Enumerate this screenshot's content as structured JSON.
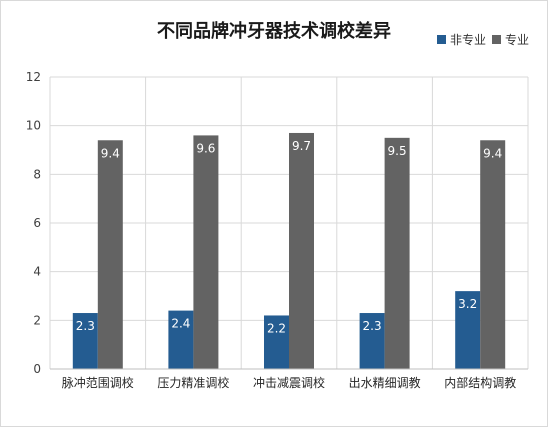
{
  "chart_data": {
    "type": "bar",
    "title": "不同品牌冲牙器技术调校差异",
    "categories": [
      "脉冲范围调校",
      "压力精准调校",
      "冲击减震调校",
      "出水精细调教",
      "内部结构调教"
    ],
    "series": [
      {
        "name": "非专业",
        "values": [
          2.3,
          2.4,
          2.2,
          2.3,
          3.2
        ],
        "color": "#245c91"
      },
      {
        "name": "专业",
        "values": [
          9.4,
          9.6,
          9.7,
          9.5,
          9.4
        ],
        "color": "#636363"
      }
    ],
    "ylim": [
      0,
      12
    ],
    "yticks": [
      0,
      2,
      4,
      6,
      8,
      10,
      12
    ],
    "grid": true,
    "legend_position": "top-right"
  }
}
